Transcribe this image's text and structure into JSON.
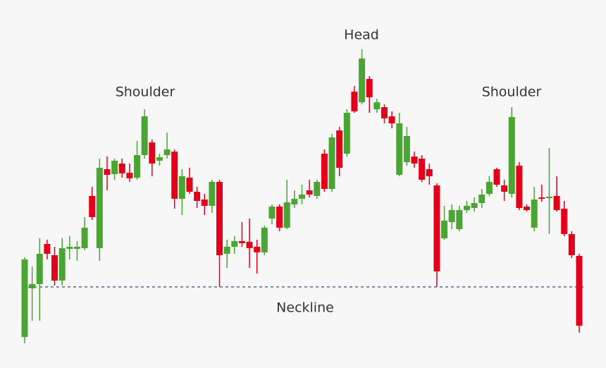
{
  "chart_data": {
    "type": "candlestick",
    "ylim": [
      0,
      500
    ],
    "up_color": "#4aa534",
    "down_color": "#e2001a",
    "open": [
      22,
      91,
      97,
      154,
      138,
      102,
      147,
      147,
      148,
      222,
      148,
      260,
      253,
      268,
      255,
      248,
      280,
      298,
      272,
      280,
      285,
      218,
      248,
      228,
      217,
      208,
      242,
      140,
      150,
      158,
      157,
      150,
      142,
      190,
      207,
      177,
      210,
      218,
      230,
      222,
      282,
      232,
      315,
      282,
      370,
      355,
      388,
      345,
      348,
      335,
      252,
      270,
      278,
      275,
      260,
      237,
      162,
      185,
      175,
      202,
      205,
      212,
      225,
      260,
      237,
      225,
      265,
      207,
      177,
      220,
      219,
      222,
      204,
      168,
      137
    ],
    "high": [
      135,
      122,
      162,
      160,
      150,
      162,
      165,
      158,
      192,
      235,
      275,
      278,
      275,
      275,
      268,
      300,
      345,
      302,
      282,
      312,
      288,
      260,
      262,
      235,
      225,
      245,
      245,
      160,
      165,
      185,
      190,
      160,
      180,
      210,
      210,
      245,
      230,
      238,
      245,
      245,
      288,
      310,
      320,
      345,
      378,
      430,
      392,
      360,
      352,
      342,
      340,
      320,
      285,
      280,
      268,
      240,
      208,
      210,
      208,
      215,
      220,
      232,
      250,
      262,
      245,
      348,
      270,
      210,
      235,
      238,
      290,
      250,
      215,
      172,
      140
    ],
    "low": [
      13,
      45,
      45,
      132,
      95,
      95,
      132,
      130,
      145,
      188,
      130,
      230,
      245,
      248,
      242,
      245,
      275,
      250,
      265,
      275,
      204,
      195,
      225,
      205,
      195,
      198,
      93,
      120,
      140,
      150,
      120,
      112,
      138,
      182,
      172,
      175,
      205,
      210,
      220,
      218,
      228,
      228,
      250,
      278,
      340,
      352,
      340,
      340,
      325,
      318,
      250,
      265,
      262,
      242,
      238,
      93,
      160,
      175,
      172,
      198,
      200,
      205,
      222,
      235,
      215,
      220,
      202,
      200,
      172,
      214,
      168,
      200,
      165,
      134,
      28
    ],
    "close": [
      132,
      97,
      140,
      140,
      102,
      148,
      150,
      150,
      177,
      192,
      262,
      252,
      272,
      254,
      247,
      280,
      335,
      268,
      277,
      288,
      218,
      250,
      228,
      215,
      208,
      242,
      138,
      150,
      158,
      155,
      148,
      142,
      177,
      207,
      177,
      213,
      218,
      224,
      224,
      242,
      232,
      305,
      262,
      340,
      342,
      417,
      362,
      355,
      332,
      325,
      325,
      307,
      268,
      245,
      250,
      115,
      187,
      202,
      202,
      208,
      212,
      224,
      242,
      238,
      228,
      334,
      205,
      202,
      217,
      218,
      221,
      202,
      168,
      138,
      38
    ],
    "neckline": {
      "label": "Neckline",
      "value": 93
    },
    "annotations": [
      "Head",
      "Shoulder",
      "Shoulder"
    ]
  }
}
